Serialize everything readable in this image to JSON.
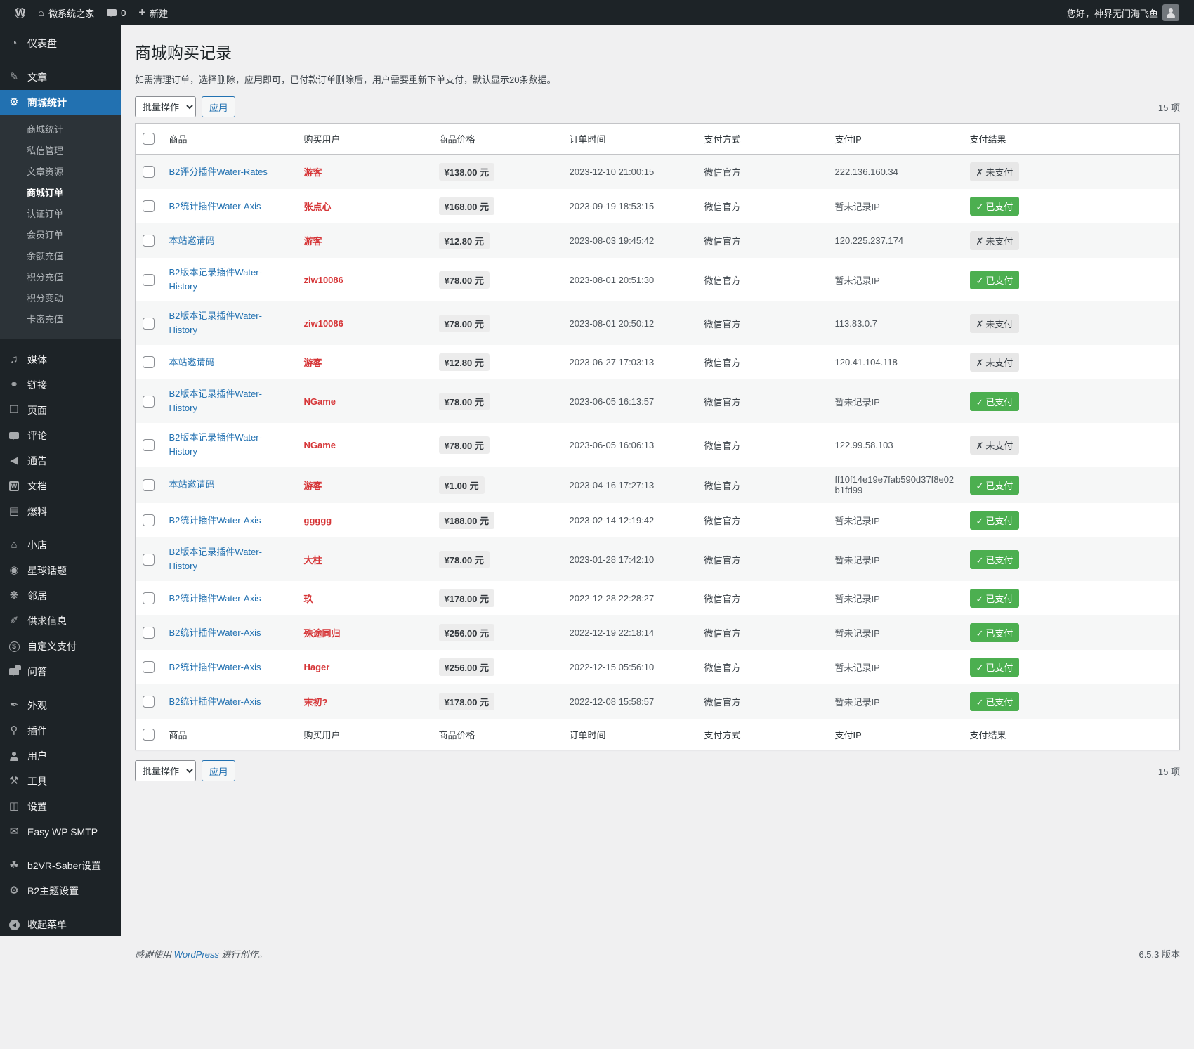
{
  "admin_bar": {
    "logo_glyph": "W",
    "site_name": "微系统之家",
    "comment_count": "0",
    "new_label": "新建",
    "greeting": "您好，神界无门海飞鱼"
  },
  "sidebar": {
    "items": [
      {
        "id": "dashboard",
        "label": "仪表盘",
        "icon": "dashboard-icon"
      },
      {
        "id": "posts",
        "label": "文章",
        "icon": "pin-icon",
        "sep_before": true
      },
      {
        "id": "mall-stats",
        "label": "商城统计",
        "icon": "gear-icon",
        "active": true,
        "submenu": [
          "商城统计",
          "私信管理",
          "文章资源",
          "商城订单",
          "认证订单",
          "会员订单",
          "余额充值",
          "积分充值",
          "积分变动",
          "卡密充值"
        ],
        "current_sub": "商城订单"
      },
      {
        "id": "media",
        "label": "媒体",
        "icon": "media-icon",
        "sep_before": true
      },
      {
        "id": "links",
        "label": "链接",
        "icon": "link-icon"
      },
      {
        "id": "pages",
        "label": "页面",
        "icon": "pages-icon"
      },
      {
        "id": "comments",
        "label": "评论",
        "icon": "comments-icon"
      },
      {
        "id": "announcements",
        "label": "通告",
        "icon": "announce-icon"
      },
      {
        "id": "docs",
        "label": "文档",
        "icon": "docs-icon"
      },
      {
        "id": "leaks",
        "label": "爆料",
        "icon": "leak-icon"
      },
      {
        "id": "shop",
        "label": "小店",
        "icon": "shop-icon",
        "sep_before": true
      },
      {
        "id": "planet-topics",
        "label": "星球话题",
        "icon": "planet-icon"
      },
      {
        "id": "neighbors",
        "label": "邻居",
        "icon": "bee-icon"
      },
      {
        "id": "supply-info",
        "label": "供求信息",
        "icon": "carrot-icon"
      },
      {
        "id": "custom-pay",
        "label": "自定义支付",
        "icon": "dollar-icon"
      },
      {
        "id": "qa",
        "label": "问答",
        "icon": "qa-icon"
      },
      {
        "id": "appearance",
        "label": "外观",
        "icon": "brush-icon",
        "sep_before": true
      },
      {
        "id": "plugins",
        "label": "插件",
        "icon": "plug-icon"
      },
      {
        "id": "users",
        "label": "用户",
        "icon": "user-icon"
      },
      {
        "id": "tools",
        "label": "工具",
        "icon": "tools-icon"
      },
      {
        "id": "settings",
        "label": "设置",
        "icon": "settings-icon"
      },
      {
        "id": "easy-wp-smtp",
        "label": "Easy WP SMTP",
        "icon": "smtp-icon"
      },
      {
        "id": "b2vr-saber",
        "label": "b2VR-Saber设置",
        "icon": "palm-icon",
        "sep_before": true
      },
      {
        "id": "b2-theme",
        "label": "B2主题设置",
        "icon": "theme-gear-icon"
      },
      {
        "id": "collapse",
        "label": "收起菜单",
        "icon": "collapse-icon",
        "sep_before": true
      }
    ]
  },
  "page": {
    "title": "商城购买记录",
    "description": "如需清理订单，选择删除，应用即可，已付款订单删除后，用户需要重新下单支付，默认显示20条数据。",
    "bulk_action_label": "批量操作",
    "apply_label": "应用",
    "item_count": "15 项"
  },
  "table": {
    "columns": [
      "商品",
      "购买用户",
      "商品价格",
      "订单时间",
      "支付方式",
      "支付IP",
      "支付结果"
    ],
    "paid_glyph": "✓",
    "unpaid_glyph": "✗",
    "paid_label": "已支付",
    "unpaid_label": "未支付",
    "rows": [
      {
        "product": "B2评分插件Water-Rates",
        "buyer": "游客",
        "price": "¥138.00 元",
        "time": "2023-12-10 21:00:15",
        "method": "微信官方",
        "ip": "222.136.160.34",
        "paid": false
      },
      {
        "product": "B2统计插件Water-Axis",
        "buyer": "张点心",
        "price": "¥168.00 元",
        "time": "2023-09-19 18:53:15",
        "method": "微信官方",
        "ip": "暂未记录IP",
        "paid": true
      },
      {
        "product": "本站邀请码",
        "buyer": "游客",
        "price": "¥12.80 元",
        "time": "2023-08-03 19:45:42",
        "method": "微信官方",
        "ip": "120.225.237.174",
        "paid": false
      },
      {
        "product": "B2版本记录插件Water-History",
        "buyer": "ziw10086",
        "price": "¥78.00 元",
        "time": "2023-08-01 20:51:30",
        "method": "微信官方",
        "ip": "暂未记录IP",
        "paid": true
      },
      {
        "product": "B2版本记录插件Water-History",
        "buyer": "ziw10086",
        "price": "¥78.00 元",
        "time": "2023-08-01 20:50:12",
        "method": "微信官方",
        "ip": "113.83.0.7",
        "paid": false
      },
      {
        "product": "本站邀请码",
        "buyer": "游客",
        "price": "¥12.80 元",
        "time": "2023-06-27 17:03:13",
        "method": "微信官方",
        "ip": "120.41.104.118",
        "paid": false
      },
      {
        "product": "B2版本记录插件Water-History",
        "buyer": "NGame",
        "price": "¥78.00 元",
        "time": "2023-06-05 16:13:57",
        "method": "微信官方",
        "ip": "暂未记录IP",
        "paid": true
      },
      {
        "product": "B2版本记录插件Water-History",
        "buyer": "NGame",
        "price": "¥78.00 元",
        "time": "2023-06-05 16:06:13",
        "method": "微信官方",
        "ip": "122.99.58.103",
        "paid": false
      },
      {
        "product": "本站邀请码",
        "buyer": "游客",
        "price": "¥1.00 元",
        "time": "2023-04-16 17:27:13",
        "method": "微信官方",
        "ip": "ff10f14e19e7fab590d37f8e02b1fd99",
        "paid": true
      },
      {
        "product": "B2统计插件Water-Axis",
        "buyer": "ggggg",
        "price": "¥188.00 元",
        "time": "2023-02-14 12:19:42",
        "method": "微信官方",
        "ip": "暂未记录IP",
        "paid": true
      },
      {
        "product": "B2版本记录插件Water-History",
        "buyer": "大柱",
        "price": "¥78.00 元",
        "time": "2023-01-28 17:42:10",
        "method": "微信官方",
        "ip": "暂未记录IP",
        "paid": true
      },
      {
        "product": "B2统计插件Water-Axis",
        "buyer": "玖",
        "price": "¥178.00 元",
        "time": "2022-12-28 22:28:27",
        "method": "微信官方",
        "ip": "暂未记录IP",
        "paid": true
      },
      {
        "product": "B2统计插件Water-Axis",
        "buyer": "殊途同归",
        "price": "¥256.00 元",
        "time": "2022-12-19 22:18:14",
        "method": "微信官方",
        "ip": "暂未记录IP",
        "paid": true
      },
      {
        "product": "B2统计插件Water-Axis",
        "buyer": "Hager",
        "price": "¥256.00 元",
        "time": "2022-12-15 05:56:10",
        "method": "微信官方",
        "ip": "暂未记录IP",
        "paid": true
      },
      {
        "product": "B2统计插件Water-Axis",
        "buyer": "末初?",
        "price": "¥178.00 元",
        "time": "2022-12-08 15:58:57",
        "method": "微信官方",
        "ip": "暂未记录IP",
        "paid": true
      }
    ]
  },
  "footer": {
    "thanks_prefix": "感谢使用 ",
    "wordpress_link": "WordPress",
    "thanks_suffix": " 进行创作。",
    "version": "6.5.3 版本"
  },
  "colors": {
    "accent_blue": "#2271b1",
    "paid_green": "#4caf50",
    "buyer_red": "#d63638",
    "dark_bar": "#1d2327"
  }
}
